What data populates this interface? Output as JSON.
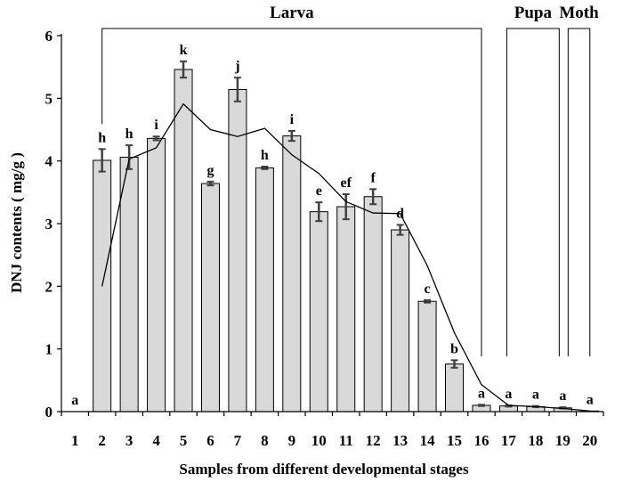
{
  "chart_data": {
    "type": "bar",
    "title": "",
    "xlabel": "Samples from different developmental stages",
    "ylabel": "DNJ contents ( mg/g )",
    "ylim": [
      0,
      6
    ],
    "yticks": [
      "0",
      "1",
      "2",
      "3",
      "4",
      "5",
      "6"
    ],
    "categories": [
      "1",
      "2",
      "3",
      "4",
      "5",
      "6",
      "7",
      "8",
      "9",
      "10",
      "11",
      "12",
      "13",
      "14",
      "15",
      "16",
      "17",
      "18",
      "19",
      "20"
    ],
    "values": [
      0.0,
      4.01,
      4.06,
      4.36,
      5.46,
      3.64,
      5.14,
      3.89,
      4.4,
      3.19,
      3.27,
      3.43,
      2.9,
      1.76,
      0.76,
      0.1,
      0.09,
      0.08,
      0.06,
      0.01
    ],
    "errors": [
      0.0,
      0.18,
      0.19,
      0.03,
      0.13,
      0.03,
      0.19,
      0.02,
      0.08,
      0.15,
      0.2,
      0.12,
      0.08,
      0.02,
      0.06,
      0.01,
      0.01,
      0.01,
      0.01,
      0.0
    ],
    "significance": [
      "a",
      "h",
      "h",
      "i",
      "k",
      "g",
      "j",
      "h",
      "i",
      "e",
      "ef",
      "f",
      "d",
      "c",
      "b",
      "a",
      "a",
      "a",
      "a",
      "a"
    ],
    "trend_line": {
      "x": [
        "2",
        "3",
        "4",
        "5",
        "6",
        "7",
        "8",
        "9",
        "10",
        "11",
        "12",
        "13",
        "14",
        "15",
        "16",
        "17",
        "18",
        "19",
        "20"
      ],
      "y": [
        2.0,
        4.03,
        4.21,
        4.91,
        4.5,
        4.39,
        4.52,
        4.1,
        3.8,
        3.35,
        3.17,
        3.16,
        2.33,
        1.26,
        0.43,
        0.1,
        0.08,
        0.05,
        0.01
      ]
    },
    "stages": [
      {
        "label": "Larva",
        "from": "2",
        "to": "16"
      },
      {
        "label": "Pupa",
        "from": "17",
        "to": "19"
      },
      {
        "label": "Moth",
        "from": "19",
        "to": "20"
      }
    ],
    "grid": false,
    "legend": "none",
    "colors": {
      "bar": "#d9d9d9",
      "bar_stroke": "#000000",
      "error_bar": "#404040",
      "line": "#000000"
    }
  }
}
